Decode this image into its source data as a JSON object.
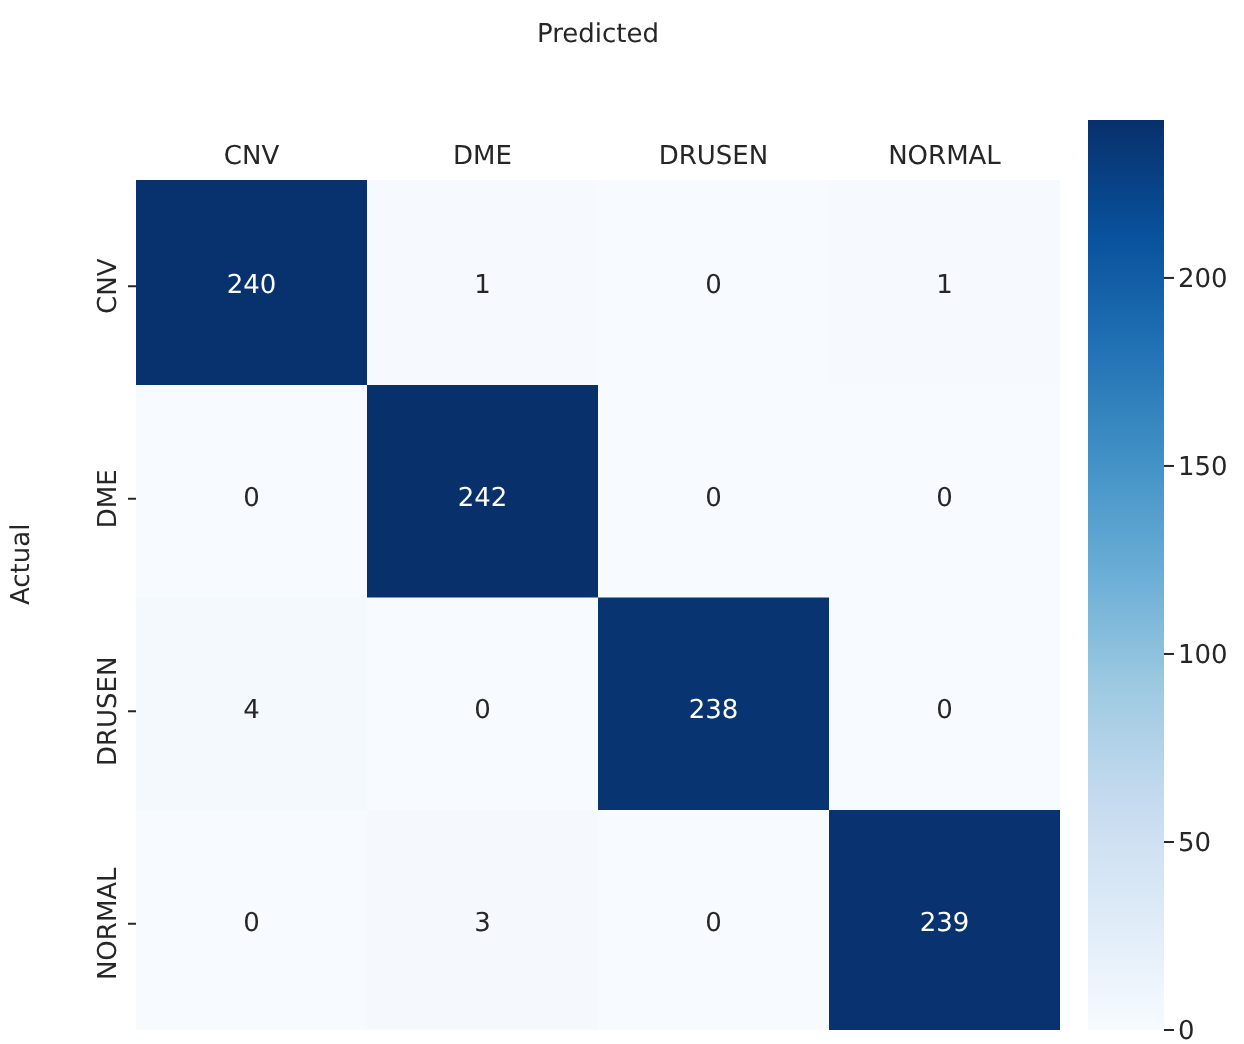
{
  "chart_data": {
    "type": "heatmap",
    "xlabel": "Predicted",
    "ylabel": "Actual",
    "categories": [
      "CNV",
      "DME",
      "DRUSEN",
      "NORMAL"
    ],
    "y_categories": [
      "CNV",
      "DME",
      "DRUSEN",
      "NORMAL"
    ],
    "cells": [
      [
        240,
        1,
        0,
        1
      ],
      [
        0,
        242,
        0,
        0
      ],
      [
        4,
        0,
        238,
        0
      ],
      [
        0,
        3,
        0,
        239
      ]
    ],
    "clim": [
      0,
      242
    ],
    "cticks": [
      0,
      50,
      100,
      150,
      200
    ],
    "data_labels": true
  }
}
